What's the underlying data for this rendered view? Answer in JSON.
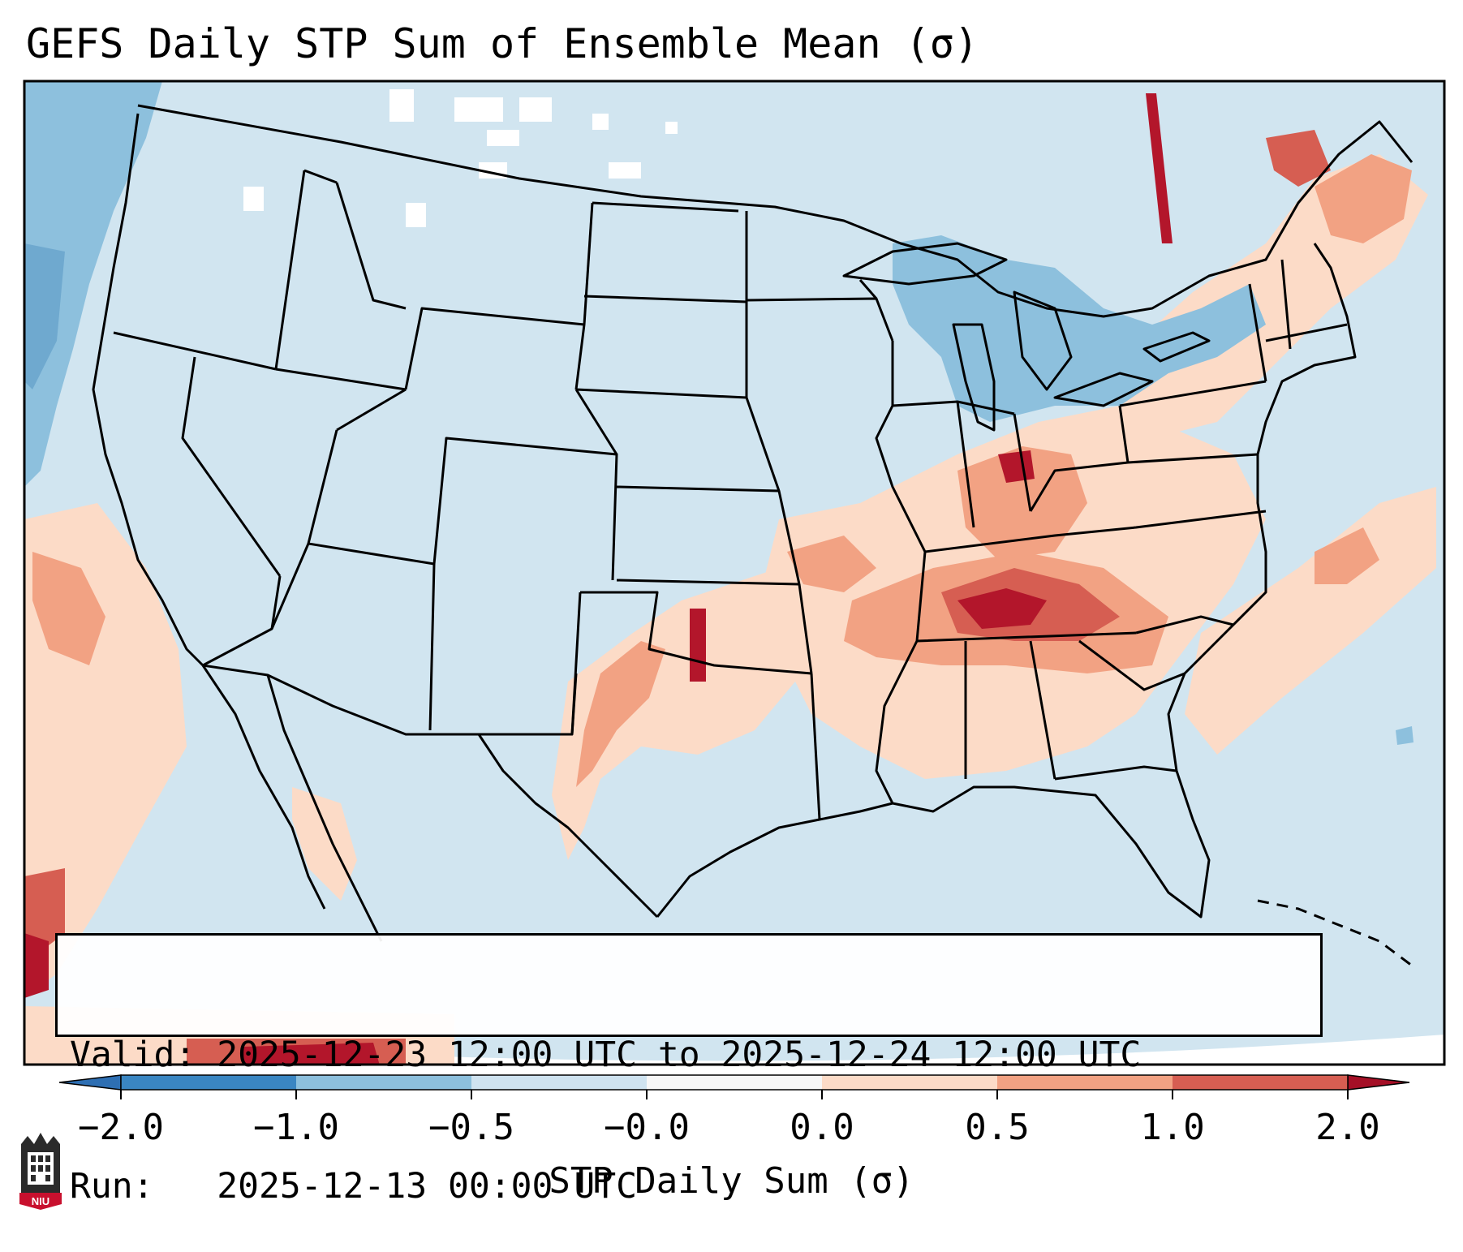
{
  "title": "GEFS Daily STP Sum of Ensemble Mean (σ)",
  "info": {
    "valid_line": "Valid: 2025-12-23 12:00 UTC to 2025-12-24 12:00 UTC",
    "run_line": "Run:   2025-12-13 00:00 UTC"
  },
  "colorbar": {
    "label": "STP Daily Sum (σ)",
    "ticks": [
      "−2.0",
      "−1.0",
      "−0.5",
      "−0.0",
      "0.0",
      "0.5",
      "1.0",
      "2.0"
    ],
    "colors": [
      "#3a86c2",
      "#8dc0dd",
      "#cfe3f0",
      "#f7f7f7",
      "#fcdbc7",
      "#f2a283",
      "#d65e52",
      "#b3162b"
    ],
    "extend": "both",
    "under_color": "#2e6fb3",
    "over_color": "#a50f26"
  },
  "map": {
    "background_color": "#d1e5f0",
    "area": "Continental United States",
    "highlight_regions": [
      {
        "region": "Tennessee Valley / Southeast",
        "level": "1.0 to 2.0"
      },
      {
        "region": "Ohio Valley / Indiana",
        "level": "0.5 to 2.0"
      },
      {
        "region": "Southern Plains (Oklahoma / Texas)",
        "level": "0.5 to 2.0"
      },
      {
        "region": "Northeast / New England",
        "level": "0.5 to 2.0"
      },
      {
        "region": "Eastern Pacific off California",
        "level": "0.5 to 2.0"
      },
      {
        "region": "Great Lakes",
        "level": "-1.0 to -0.5"
      },
      {
        "region": "Pacific Northwest offshore",
        "level": "-1.0 to -0.5"
      }
    ]
  },
  "logo": {
    "name": "niu-logo",
    "text": "NIU"
  }
}
